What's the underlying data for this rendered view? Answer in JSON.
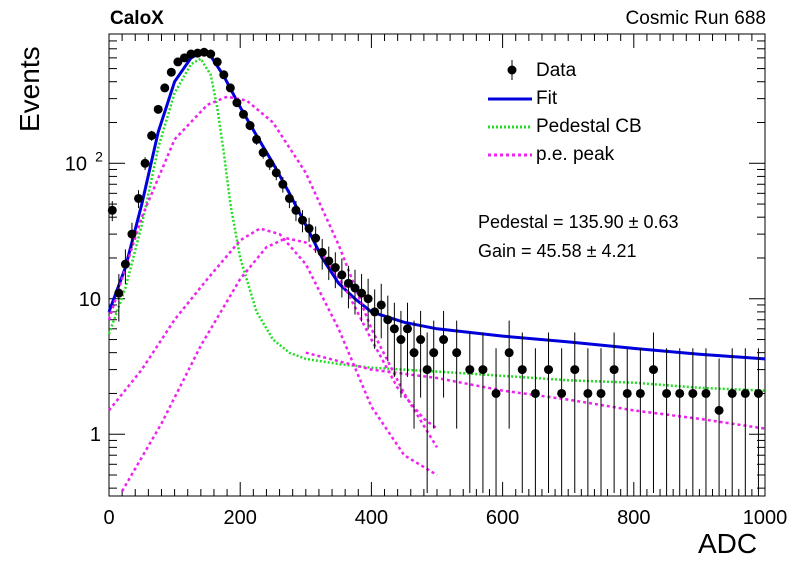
{
  "header": {
    "left": "CaloX",
    "right": "Cosmic Run 688"
  },
  "chart_data": {
    "type": "scatter",
    "xlabel": "ADC",
    "ylabel": "Events",
    "xlim": [
      0,
      1000
    ],
    "ylim": [
      0.35,
      900
    ],
    "yscale": "log",
    "x_ticks": [
      "0",
      "200",
      "400",
      "600",
      "800",
      "1000"
    ],
    "y_ticks": [
      {
        "value": 1,
        "label": "1"
      },
      {
        "value": 10,
        "label": "10"
      },
      {
        "value": 100,
        "label": "10",
        "sup": "2"
      }
    ],
    "legend_position": "top-right",
    "series": [
      {
        "name": "Data",
        "kind": "points",
        "color": "#000000",
        "x": [
          5,
          15,
          25,
          35,
          45,
          55,
          65,
          75,
          85,
          95,
          105,
          115,
          125,
          135,
          145,
          155,
          165,
          175,
          185,
          195,
          205,
          215,
          225,
          235,
          245,
          255,
          265,
          275,
          285,
          295,
          305,
          315,
          325,
          335,
          345,
          355,
          365,
          375,
          385,
          395,
          405,
          415,
          425,
          435,
          445,
          455,
          465,
          475,
          485,
          495,
          510,
          530,
          550,
          570,
          590,
          610,
          630,
          650,
          670,
          690,
          710,
          730,
          750,
          770,
          790,
          810,
          830,
          850,
          870,
          890,
          910,
          930,
          950,
          970,
          990
        ],
        "y": [
          45,
          11,
          18,
          30,
          55,
          100,
          160,
          250,
          360,
          470,
          560,
          600,
          640,
          650,
          660,
          640,
          560,
          450,
          360,
          280,
          230,
          190,
          150,
          120,
          100,
          85,
          70,
          55,
          45,
          38,
          33,
          28,
          22,
          19,
          17,
          15,
          13,
          12,
          11,
          10,
          8,
          9,
          7,
          6,
          5,
          6,
          4,
          5,
          3,
          4,
          5,
          4,
          3,
          3,
          2,
          4,
          3,
          2,
          3,
          2,
          3,
          2,
          2,
          3,
          2,
          2,
          3,
          2,
          2,
          2,
          2,
          1.5,
          2,
          2,
          2
        ]
      },
      {
        "name": "Fit",
        "kind": "line",
        "color": "#0000dd",
        "x": [
          0,
          25,
          50,
          75,
          100,
          125,
          140,
          155,
          175,
          200,
          225,
          250,
          275,
          300,
          325,
          350,
          375,
          400,
          450,
          500,
          600,
          700,
          800,
          900,
          1000
        ],
        "y": [
          8,
          17,
          50,
          170,
          400,
          600,
          660,
          620,
          440,
          260,
          160,
          100,
          60,
          35,
          20,
          13,
          10,
          8,
          6.7,
          6,
          5.3,
          4.8,
          4.3,
          3.9,
          3.6
        ]
      },
      {
        "name": "Pedestal CB",
        "kind": "line",
        "color": "#22dd22",
        "x": [
          0,
          25,
          50,
          75,
          100,
          125,
          140,
          155,
          165,
          175,
          185,
          200,
          225,
          250,
          275,
          300,
          350,
          400,
          500,
          600,
          700,
          800,
          900,
          1000
        ],
        "y": [
          5.5,
          12,
          35,
          130,
          330,
          540,
          590,
          450,
          260,
          120,
          50,
          20,
          8,
          5,
          4,
          3.6,
          3.3,
          3.1,
          2.9,
          2.7,
          2.5,
          2.4,
          2.2,
          2.1
        ]
      },
      {
        "name": "p.e. peak",
        "kind": "line",
        "color": "#ee22ee",
        "x": [
          0,
          50,
          100,
          150,
          180,
          210,
          250,
          300,
          350,
          400,
          450,
          500
        ],
        "y": [
          7,
          40,
          150,
          270,
          310,
          290,
          200,
          85,
          25,
          6,
          2,
          0.8
        ]
      },
      {
        "name": "",
        "kind": "line",
        "color": "#ee22ee",
        "x": [
          0,
          50,
          100,
          150,
          200,
          230,
          260,
          300,
          350,
          400,
          450,
          500
        ],
        "y": [
          1.5,
          3,
          7,
          14,
          27,
          33,
          30,
          18,
          6,
          1.6,
          0.7,
          0.5
        ]
      },
      {
        "name": "",
        "kind": "line",
        "color": "#ee22ee",
        "x": [
          20,
          80,
          140,
          200,
          240,
          270,
          300,
          330,
          360,
          400,
          440,
          480,
          500
        ],
        "y": [
          0.38,
          1.2,
          4.5,
          14,
          24,
          28,
          26,
          20,
          12,
          5,
          2.2,
          1.3,
          1.1
        ]
      },
      {
        "name": "",
        "kind": "line",
        "color": "#ee22ee",
        "x": [
          300,
          400,
          500,
          600,
          700,
          800,
          900,
          1000
        ],
        "y": [
          4,
          3,
          2.6,
          2.1,
          1.8,
          1.5,
          1.3,
          1.1
        ]
      }
    ],
    "fit_info": [
      "Pedestal = 135.90 ± 0.63",
      "Gain = 45.58 ± 4.21"
    ]
  }
}
